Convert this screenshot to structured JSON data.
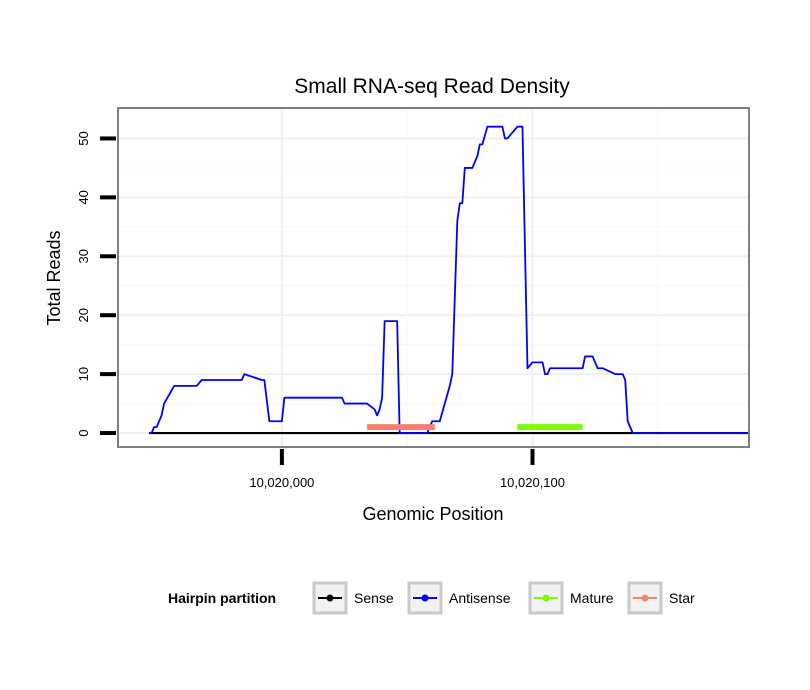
{
  "chart_data": {
    "type": "line",
    "title": "Small RNA-seq Read Density",
    "xlabel": "Genomic Position",
    "ylabel": "Total Reads",
    "xlim": [
      10019935,
      10020186
    ],
    "ylim": [
      -2.2,
      55
    ],
    "x_ticks": [
      {
        "value": 10020000,
        "label": "10,020,000"
      },
      {
        "value": 10020100,
        "label": "10,020,100"
      }
    ],
    "y_ticks": [
      {
        "value": 0,
        "label": "0"
      },
      {
        "value": 10,
        "label": "10"
      },
      {
        "value": 20,
        "label": "20"
      },
      {
        "value": 30,
        "label": "30"
      },
      {
        "value": 40,
        "label": "40"
      },
      {
        "value": 50,
        "label": "50"
      }
    ],
    "legend": {
      "title": "Hairpin partition",
      "placement": "bottom",
      "entries": [
        {
          "name": "Sense",
          "color": "#000000"
        },
        {
          "name": "Antisense",
          "color": "#0000ff"
        },
        {
          "name": "Mature",
          "color": "#7cfc00"
        },
        {
          "name": "Star",
          "color": "#fa8072"
        }
      ]
    },
    "series": [
      {
        "name": "Sense",
        "color": "#000000",
        "x": [
          10019947,
          10020186
        ],
        "y": [
          0,
          0
        ]
      },
      {
        "name": "Antisense",
        "color": "#0000ff",
        "x": [
          10019947,
          10019948,
          10019949,
          10019950,
          10019952,
          10019953,
          10019957,
          10019958,
          10019966,
          10019968,
          10019969,
          10019970,
          10019971,
          10019972,
          10019976,
          10019978,
          10019984,
          10019985,
          10019992,
          10019993,
          10019995,
          10019996,
          10020000,
          10020001,
          10020024,
          10020025,
          10020026,
          10020033,
          10020034,
          10020037,
          10020038,
          10020039,
          10020040,
          10020041,
          10020042,
          10020043,
          10020046,
          10020047,
          10020049,
          10020050,
          10020052,
          10020053,
          10020055,
          10020056,
          10020058,
          10020060,
          10020063,
          10020067,
          10020068,
          10020070,
          10020071,
          10020072,
          10020073,
          10020076,
          10020077,
          10020078,
          10020079,
          10020080,
          10020082,
          10020083,
          10020088,
          10020089,
          10020090,
          10020094,
          10020095,
          10020096,
          10020098,
          10020100,
          10020104,
          10020105,
          10020106,
          10020107,
          10020120,
          10020121,
          10020123,
          10020124,
          10020126,
          10020128,
          10020133,
          10020133.5,
          10020136,
          10020137,
          10020138,
          10020140,
          10020141,
          10020142,
          10020146,
          10020147,
          10020148,
          10020149,
          10020152,
          10020153,
          10020154,
          10020155,
          10020156,
          10020157,
          10020186
        ],
        "y": [
          0,
          0,
          1,
          1,
          3,
          5,
          8,
          8,
          8,
          9,
          9,
          9,
          9,
          9,
          9,
          9,
          9,
          10,
          9,
          9,
          2,
          2,
          2,
          6,
          6,
          5,
          5,
          5,
          5,
          4,
          3,
          4,
          6,
          19,
          19,
          19,
          19,
          0,
          0,
          0,
          0,
          0,
          0,
          0,
          0,
          2,
          2,
          8,
          10,
          36,
          39,
          39,
          45,
          45,
          46,
          47,
          49,
          49,
          52,
          52,
          52,
          50,
          50,
          52,
          52,
          52,
          11,
          12,
          12,
          10,
          10,
          11,
          11,
          13,
          13,
          13,
          11,
          11,
          10,
          10,
          10,
          9,
          2,
          0,
          0,
          0,
          0,
          0,
          0,
          0,
          0,
          0,
          0,
          0,
          0,
          0,
          0
        ]
      },
      {
        "name": "Mature",
        "color": "#7cfc00",
        "x": [
          10020094,
          10020120
        ],
        "y": [
          1,
          1
        ]
      },
      {
        "name": "Star",
        "color": "#fa8072",
        "x": [
          10020034,
          10020061
        ],
        "y": [
          1,
          1
        ]
      }
    ]
  }
}
